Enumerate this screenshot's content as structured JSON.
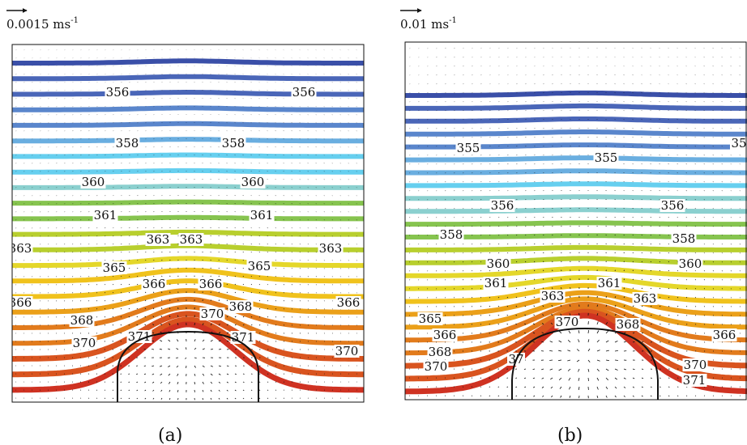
{
  "panels": [
    {
      "id": "a",
      "caption": "(a)",
      "scale_label": "0.0015 ms",
      "scale_exp": "-1",
      "labels": [
        "356",
        "356",
        "358",
        "358",
        "360",
        "360",
        "361",
        "361",
        "363",
        "363",
        "363",
        "363",
        "365",
        "365",
        "366",
        "366",
        "366",
        "366",
        "368",
        "368",
        "370",
        "370",
        "370",
        "371",
        "371"
      ]
    },
    {
      "id": "b",
      "caption": "(b)",
      "scale_label": "0.01 ms",
      "scale_exp": "-1",
      "labels": [
        "355",
        "355",
        "35",
        "356",
        "356",
        "358",
        "358",
        "360",
        "360",
        "361",
        "361",
        "363",
        "363",
        "365",
        "366",
        "366",
        "368",
        "368",
        "370",
        "370",
        "370",
        "37",
        "371"
      ]
    }
  ],
  "colors": {
    "contour_scale": [
      "#3a4fa8",
      "#4a66b8",
      "#5a86cc",
      "#6aaee0",
      "#66cfef",
      "#8bd0cf",
      "#86c44f",
      "#b8cf2e",
      "#e4d72a",
      "#f0c21c",
      "#eba019",
      "#e27b1c",
      "#d9541f",
      "#cf3222"
    ]
  }
}
